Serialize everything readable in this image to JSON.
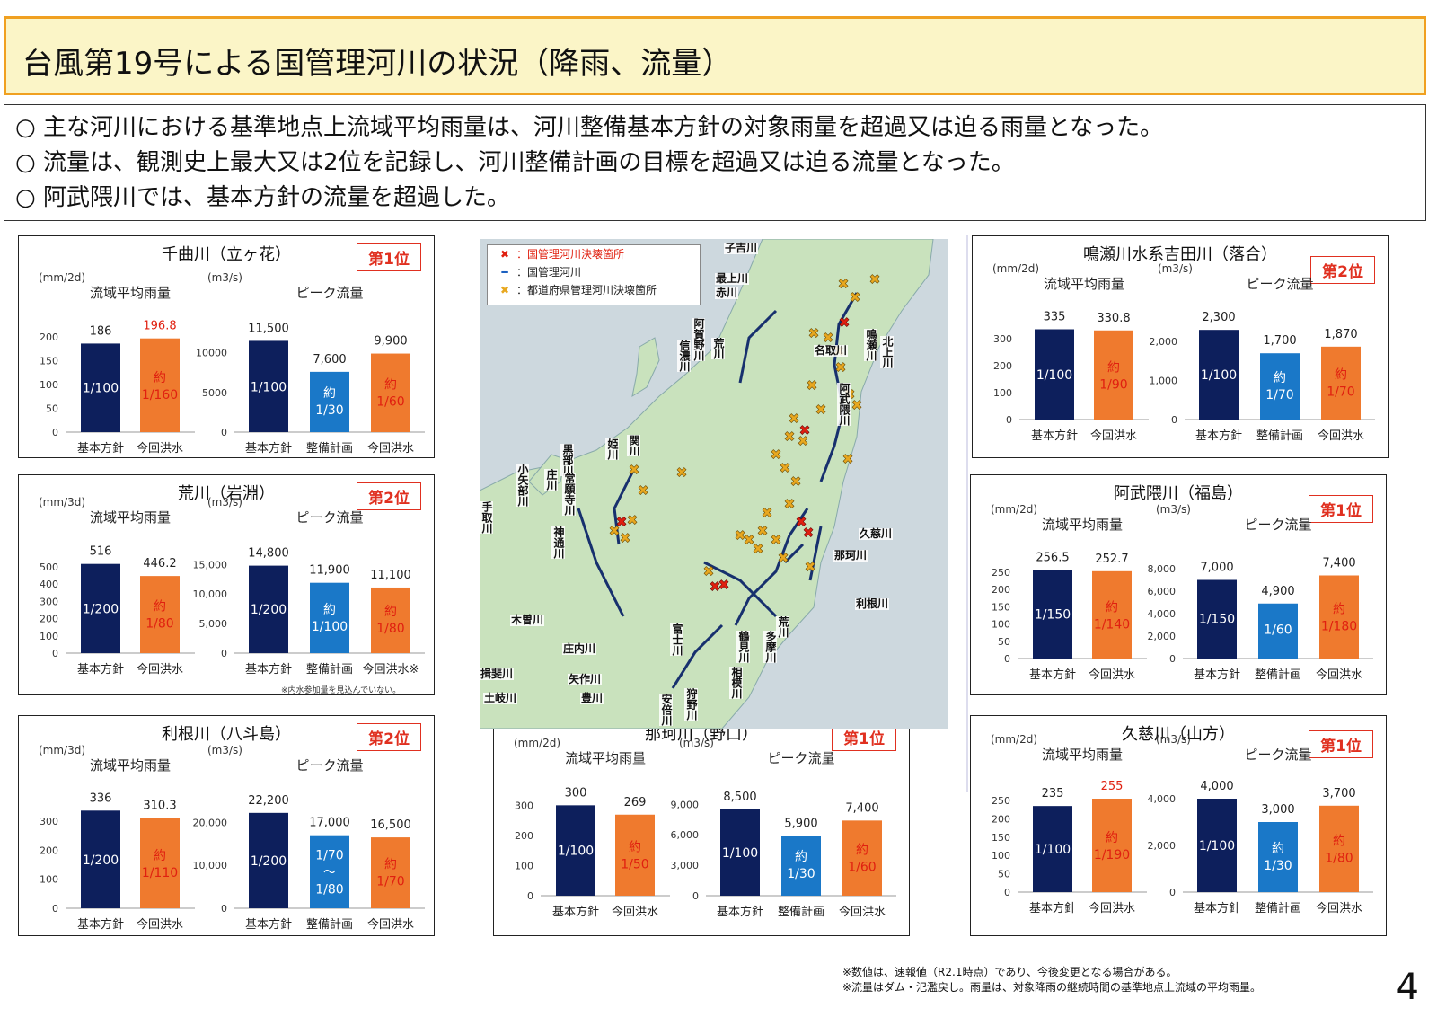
{
  "page_title": "台風第19号による国管理河川の状況（降雨、流量）",
  "summary": [
    "○ 主な河川における基準地点上流域平均雨量は、河川整備基本方針の対象雨量を超過又は迫る雨量となった。",
    "○ 流量は、観測史上最大又は2位を記録し、河川整備計画の目標を超過又は迫る流量となった。",
    "○ 阿武隈川では、基本方針の流量を超過した。"
  ],
  "colors": {
    "navy": "#0d1f5c",
    "blue": "#1a78c8",
    "orange": "#ef7a2e",
    "red": "#e02010",
    "title_bg": "#fbf5c7",
    "title_border": "#f0a020"
  },
  "map": {
    "legend": [
      {
        "icon": "red-x-icon",
        "symbol": "✖",
        "label": "：国管理河川決壊箇所"
      },
      {
        "icon": "blue-line-icon",
        "symbol": "━",
        "label": "：国管理河川"
      },
      {
        "icon": "yellow-x-icon",
        "symbol": "✖",
        "label": "：都道府県管理河川決壊箇所"
      }
    ],
    "labels": [
      "子吉川",
      "最上川",
      "赤川",
      "阿賀野川",
      "信濃川",
      "荒川",
      "名取川",
      "鳴瀬川",
      "北上川",
      "阿武隈川",
      "関川",
      "姫川",
      "黒部川",
      "小矢部川",
      "庄川",
      "常願寺川",
      "神通川",
      "手取川",
      "久慈川",
      "那珂川",
      "利根川",
      "荒川",
      "多摩川",
      "鶴見川",
      "相模川",
      "富士川",
      "木曽川",
      "庄内川",
      "矢作川",
      "豊川",
      "安倍川",
      "狩野川",
      "揖斐川",
      "土岐川"
    ]
  },
  "chart_data": [
    {
      "river": "千曲川（立ヶ花）",
      "rank": "第1位",
      "rain": {
        "type": "bar",
        "unit": "(mm/2d)",
        "title": "流域平均雨量",
        "categories": [
          "基本方針",
          "今回洪水"
        ],
        "values": [
          186,
          196.8
        ],
        "value_labels": [
          "186",
          "196.8"
        ],
        "bar_labels": [
          "1/100",
          "約\n1/160"
        ],
        "colors": [
          "navy",
          "orange"
        ],
        "ylim": [
          0,
          200
        ],
        "ticks": [
          "0",
          "50",
          "100",
          "150",
          "200"
        ],
        "tick_values": [
          0,
          50,
          100,
          150,
          200
        ]
      },
      "flow": {
        "type": "bar",
        "unit": "(m3/s)",
        "title": "ピーク流量",
        "categories": [
          "基本方針",
          "整備計画",
          "今回洪水"
        ],
        "values": [
          11500,
          7600,
          9900
        ],
        "value_labels": [
          "11,500",
          "7,600",
          "9,900"
        ],
        "bar_labels": [
          "1/100",
          "約\n1/30",
          "約\n1/60"
        ],
        "colors": [
          "navy",
          "blue",
          "orange"
        ],
        "ylim": [
          0,
          12000
        ],
        "ticks": [
          "0",
          "5000",
          "10000"
        ],
        "tick_values": [
          0,
          5000,
          10000
        ]
      }
    },
    {
      "river": "荒川（岩淵）",
      "rank": "第2位",
      "note": "※内水参加量を見込んでいない。",
      "rain": {
        "type": "bar",
        "unit": "(mm/3d)",
        "title": "流域平均雨量",
        "categories": [
          "基本方針",
          "今回洪水"
        ],
        "values": [
          516,
          446.2
        ],
        "value_labels": [
          "516",
          "446.2"
        ],
        "bar_labels": [
          "1/200",
          "約\n1/80"
        ],
        "colors": [
          "navy",
          "orange"
        ],
        "ylim": [
          0,
          530
        ],
        "ticks": [
          "0",
          "100",
          "200",
          "300",
          "400",
          "500"
        ],
        "tick_values": [
          0,
          100,
          200,
          300,
          400,
          500
        ]
      },
      "flow": {
        "type": "bar",
        "unit": "(m3/s)",
        "title": "ピーク流量",
        "categories": [
          "基本方針",
          "整備計画",
          "今回洪水※"
        ],
        "values": [
          14800,
          11900,
          11100
        ],
        "value_labels": [
          "14,800",
          "11,900",
          "11,100"
        ],
        "bar_labels": [
          "1/200",
          "約\n1/100",
          "約\n1/80"
        ],
        "colors": [
          "navy",
          "blue",
          "orange"
        ],
        "ylim": [
          0,
          15500
        ],
        "ticks": [
          "0",
          "5,000",
          "10,000",
          "15,000"
        ],
        "tick_values": [
          0,
          5000,
          10000,
          15000
        ]
      }
    },
    {
      "river": "利根川（八斗島）",
      "rank": "第2位",
      "rain": {
        "type": "bar",
        "unit": "(mm/3d)",
        "title": "流域平均雨量",
        "categories": [
          "基本方針",
          "今回洪水"
        ],
        "values": [
          336,
          310.3
        ],
        "value_labels": [
          "336",
          "310.3"
        ],
        "bar_labels": [
          "1/200",
          "約\n1/110"
        ],
        "colors": [
          "navy",
          "orange"
        ],
        "ylim": [
          0,
          340
        ],
        "ticks": [
          "0",
          "100",
          "200",
          "300"
        ],
        "tick_values": [
          0,
          100,
          200,
          300
        ]
      },
      "flow": {
        "type": "bar",
        "unit": "(m3/s)",
        "title": "ピーク流量",
        "categories": [
          "基本方針",
          "整備計画",
          "今回洪水"
        ],
        "values": [
          22200,
          17000,
          16500
        ],
        "value_labels": [
          "22,200",
          "17,000",
          "16,500"
        ],
        "bar_labels": [
          "1/200",
          "1/70\n〜\n1/80",
          "約\n1/70"
        ],
        "colors": [
          "navy",
          "blue",
          "orange"
        ],
        "ylim": [
          0,
          23000
        ],
        "ticks": [
          "0",
          "10,000",
          "20,000"
        ],
        "tick_values": [
          0,
          10000,
          20000
        ]
      }
    },
    {
      "river": "那珂川（野口）",
      "rank": "第1位",
      "rain": {
        "type": "bar",
        "unit": "(mm/2d)",
        "title": "流域平均雨量",
        "categories": [
          "基本方針",
          "今回洪水"
        ],
        "values": [
          300,
          269
        ],
        "value_labels": [
          "300",
          "269"
        ],
        "bar_labels": [
          "1/100",
          "約\n1/50"
        ],
        "colors": [
          "navy",
          "orange"
        ],
        "ylim": [
          0,
          310
        ],
        "ticks": [
          "0",
          "100",
          "200",
          "300"
        ],
        "tick_values": [
          0,
          100,
          200,
          300
        ]
      },
      "flow": {
        "type": "bar",
        "unit": "(m3/s)",
        "title": "ピーク流量",
        "categories": [
          "基本方針",
          "整備計画",
          "今回洪水"
        ],
        "values": [
          8500,
          5900,
          7400
        ],
        "value_labels": [
          "8,500",
          "5,900",
          "7,400"
        ],
        "bar_labels": [
          "1/100",
          "約\n1/30",
          "約\n1/60"
        ],
        "colors": [
          "navy",
          "blue",
          "orange"
        ],
        "ylim": [
          0,
          9200
        ],
        "ticks": [
          "0",
          "3,000",
          "6,000",
          "9,000"
        ],
        "tick_values": [
          0,
          3000,
          6000,
          9000
        ]
      }
    },
    {
      "river": "鳴瀬川水系吉田川（落合）",
      "rank": "第2位",
      "rain": {
        "type": "bar",
        "unit": "(mm/2d)",
        "title": "流域平均雨量",
        "categories": [
          "基本方針",
          "今回洪水"
        ],
        "values": [
          335,
          330.8
        ],
        "value_labels": [
          "335",
          "330.8"
        ],
        "bar_labels": [
          "1/100",
          "約\n1/90"
        ],
        "colors": [
          "navy",
          "orange"
        ],
        "ylim": [
          0,
          340
        ],
        "ticks": [
          "0",
          "100",
          "200",
          "300"
        ],
        "tick_values": [
          0,
          100,
          200,
          300
        ]
      },
      "flow": {
        "type": "bar",
        "unit": "(m3/s)",
        "title": "ピーク流量",
        "categories": [
          "基本方針",
          "整備計画",
          "今回洪水"
        ],
        "values": [
          2300,
          1700,
          1870
        ],
        "value_labels": [
          "2,300",
          "1,700",
          "1,870"
        ],
        "bar_labels": [
          "1/100",
          "約\n1/70",
          "約\n1/70"
        ],
        "colors": [
          "navy",
          "blue",
          "orange"
        ],
        "ylim": [
          0,
          2350
        ],
        "ticks": [
          "0",
          "1,000",
          "2,000"
        ],
        "tick_values": [
          0,
          1000,
          2000
        ]
      }
    },
    {
      "river": "阿武隈川（福島）",
      "rank": "第1位",
      "rain": {
        "type": "bar",
        "unit": "(mm/2d)",
        "title": "流域平均雨量",
        "categories": [
          "基本方針",
          "今回洪水"
        ],
        "values": [
          256.5,
          252.7
        ],
        "value_labels": [
          "256.5",
          "252.7"
        ],
        "bar_labels": [
          "1/150",
          "約\n1/140"
        ],
        "colors": [
          "navy",
          "orange"
        ],
        "ylim": [
          0,
          260
        ],
        "ticks": [
          "0",
          "50",
          "100",
          "150",
          "200",
          "250"
        ],
        "tick_values": [
          0,
          50,
          100,
          150,
          200,
          250
        ]
      },
      "flow": {
        "type": "bar",
        "unit": "(m3/s)",
        "title": "ピーク流量",
        "categories": [
          "基本方針",
          "整備計画",
          "今回洪水"
        ],
        "values": [
          7000,
          4900,
          7400
        ],
        "value_labels": [
          "7,000",
          "4,900",
          "7,400"
        ],
        "bar_labels": [
          "1/150",
          "1/60",
          "約\n1/180"
        ],
        "colors": [
          "navy",
          "blue",
          "orange"
        ],
        "ylim": [
          0,
          8000
        ],
        "ticks": [
          "0",
          "2,000",
          "4,000",
          "6,000",
          "8,000"
        ],
        "tick_values": [
          0,
          2000,
          4000,
          6000,
          8000
        ]
      }
    },
    {
      "river": "久慈川（山方）",
      "rank": "第1位",
      "rain": {
        "type": "bar",
        "unit": "(mm/2d)",
        "title": "流域平均雨量",
        "categories": [
          "基本方針",
          "今回洪水"
        ],
        "values": [
          235,
          255
        ],
        "value_labels": [
          "235",
          "255"
        ],
        "bar_labels": [
          "1/100",
          "約\n1/190"
        ],
        "colors": [
          "navy",
          "orange"
        ],
        "ylim": [
          0,
          255
        ],
        "ticks": [
          "0",
          "50",
          "100",
          "150",
          "200",
          "250"
        ],
        "tick_values": [
          0,
          50,
          100,
          150,
          200,
          250
        ]
      },
      "flow": {
        "type": "bar",
        "unit": "(m3/s)",
        "title": "ピーク流量",
        "categories": [
          "基本方針",
          "整備計画",
          "今回洪水"
        ],
        "values": [
          4000,
          3000,
          3700
        ],
        "value_labels": [
          "4,000",
          "3,000",
          "3,700"
        ],
        "bar_labels": [
          "1/100",
          "約\n1/30",
          "約\n1/80"
        ],
        "colors": [
          "navy",
          "blue",
          "orange"
        ],
        "ylim": [
          0,
          4000
        ],
        "ticks": [
          "0",
          "2,000",
          "4,000"
        ],
        "tick_values": [
          0,
          2000,
          4000
        ]
      }
    }
  ],
  "footnotes": [
    "※数値は、速報値（R2.1時点）であり、今後変更となる場合がある。",
    "※流量はダム・氾濫戻し。雨量は、対象降雨の継続時間の基準地点上流域の平均雨量。"
  ],
  "page_number": "4"
}
